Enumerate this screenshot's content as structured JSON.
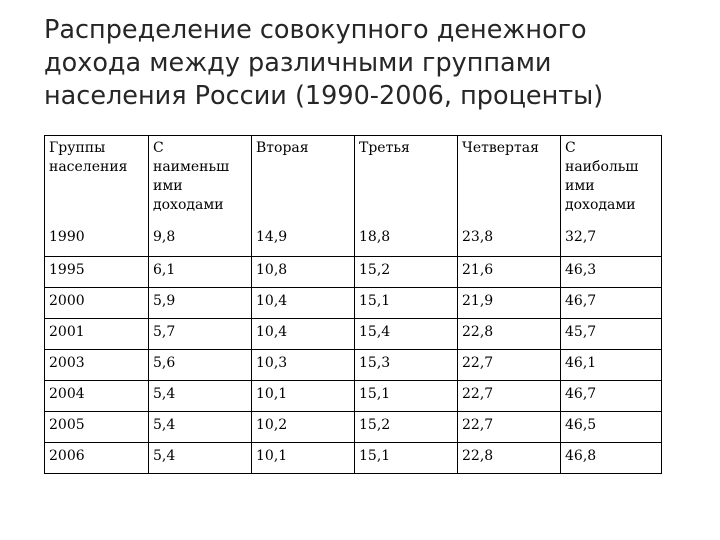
{
  "title_lines": [
    "Распределение совокупного денежного",
    "дохода между различными группами",
    "населения России (1990-2006, проценты)"
  ],
  "table": {
    "headers": [
      [
        "Группы",
        "населения"
      ],
      [
        "С",
        "наименьш",
        "ими",
        "доходами"
      ],
      [
        "Вторая"
      ],
      [
        "Третья"
      ],
      [
        "Четвертая"
      ],
      [
        "С",
        "наибольш",
        "ими",
        "доходами"
      ]
    ],
    "rows": [
      [
        "1990",
        "9,8",
        "14,9",
        "18,8",
        "23,8",
        "32,7"
      ],
      [
        "1995",
        "6,1",
        "10,8",
        "15,2",
        "21,6",
        "46,3"
      ],
      [
        "2000",
        "5,9",
        "10,4",
        "15,1",
        "21,9",
        "46,7"
      ],
      [
        "2001",
        "5,7",
        "10,4",
        "15,4",
        "22,8",
        "45,7"
      ],
      [
        "2003",
        "5,6",
        "10,3",
        "15,3",
        "22,7",
        "46,1"
      ],
      [
        "2004",
        "5,4",
        "10,1",
        "15,1",
        "22,7",
        "46,7"
      ],
      [
        "2005",
        "5,4",
        "10,2",
        "15,2",
        "22,7",
        "46,5"
      ],
      [
        "2006",
        "5,4",
        "10,1",
        "15,1",
        "22,8",
        "46,8"
      ]
    ]
  }
}
